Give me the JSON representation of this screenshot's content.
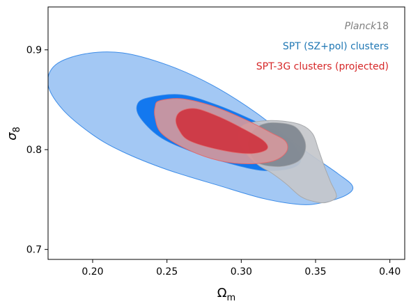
{
  "chart_data": {
    "type": "contour",
    "xlabel": "Ω",
    "xlabel_sub": "m",
    "ylabel": "σ",
    "ylabel_sub": "8",
    "xlim": [
      0.17,
      0.41
    ],
    "ylim": [
      0.69,
      0.943
    ],
    "xticks": [
      0.2,
      0.25,
      0.3,
      0.35,
      0.4
    ],
    "xtick_labels": [
      "0.20",
      "0.25",
      "0.30",
      "0.35",
      "0.40"
    ],
    "yticks": [
      0.7,
      0.8,
      0.9
    ],
    "ytick_labels": [
      "0.7",
      "0.8",
      "0.9"
    ],
    "grid": false,
    "legend_placement": "top-right",
    "legend": [
      {
        "label_italic": "Planck",
        "label": "18",
        "color": "#7f7f7f"
      },
      {
        "label_italic": "",
        "label": "SPT (SZ+pol) clusters",
        "color": "#1f77b4"
      },
      {
        "label_italic": "",
        "label": "SPT-3G clusters (projected)",
        "color": "#d62728"
      }
    ],
    "series": [
      {
        "key": "spt_sz_pol",
        "outer_fill": "#9bc3f3",
        "inner_fill": "#0671ee",
        "edge": "#3c8ce8",
        "contour_68": [
          [
            0.2372,
            0.852
          ],
          [
            0.26,
            0.855
          ],
          [
            0.285,
            0.844
          ],
          [
            0.31,
            0.828
          ],
          [
            0.33,
            0.813
          ],
          [
            0.34,
            0.793
          ],
          [
            0.335,
            0.782
          ],
          [
            0.315,
            0.779
          ],
          [
            0.29,
            0.787
          ],
          [
            0.265,
            0.799
          ],
          [
            0.245,
            0.813
          ],
          [
            0.232,
            0.832
          ],
          [
            0.23,
            0.845
          ]
        ],
        "contour_95": [
          [
            0.22,
            0.897
          ],
          [
            0.25,
            0.885
          ],
          [
            0.28,
            0.865
          ],
          [
            0.31,
            0.837
          ],
          [
            0.34,
            0.802
          ],
          [
            0.365,
            0.776
          ],
          [
            0.375,
            0.763
          ],
          [
            0.37,
            0.754
          ],
          [
            0.355,
            0.747
          ],
          [
            0.34,
            0.745
          ],
          [
            0.315,
            0.751
          ],
          [
            0.285,
            0.764
          ],
          [
            0.25,
            0.78
          ],
          [
            0.22,
            0.798
          ],
          [
            0.2,
            0.815
          ],
          [
            0.18,
            0.84
          ],
          [
            0.17,
            0.865
          ],
          [
            0.175,
            0.885
          ],
          [
            0.195,
            0.896
          ]
        ]
      },
      {
        "key": "planck18",
        "outer_fill": "#c4c7cb",
        "inner_fill": "#7f8790",
        "edge": "#a7a9ac",
        "contour_68": [
          [
            0.31,
            0.822
          ],
          [
            0.32,
            0.827
          ],
          [
            0.335,
            0.824
          ],
          [
            0.342,
            0.812
          ],
          [
            0.343,
            0.799
          ],
          [
            0.338,
            0.788
          ],
          [
            0.326,
            0.783
          ],
          [
            0.312,
            0.786
          ],
          [
            0.306,
            0.796
          ],
          [
            0.305,
            0.81
          ]
        ],
        "contour_95": [
          [
            0.3,
            0.823
          ],
          [
            0.31,
            0.828
          ],
          [
            0.325,
            0.829
          ],
          [
            0.34,
            0.825
          ],
          [
            0.348,
            0.816
          ],
          [
            0.352,
            0.8
          ],
          [
            0.356,
            0.783
          ],
          [
            0.36,
            0.768
          ],
          [
            0.364,
            0.753
          ],
          [
            0.357,
            0.747
          ],
          [
            0.349,
            0.748
          ],
          [
            0.34,
            0.753
          ],
          [
            0.33,
            0.766
          ],
          [
            0.32,
            0.777
          ],
          [
            0.312,
            0.784
          ],
          [
            0.304,
            0.795
          ],
          [
            0.298,
            0.81
          ]
        ]
      },
      {
        "key": "spt3g_projected",
        "outer_fill": "#d4989c",
        "inner_fill": "#ce3440",
        "edge": "#e06a6d",
        "contour_68": [
          [
            0.26,
            0.839
          ],
          [
            0.27,
            0.841
          ],
          [
            0.285,
            0.833
          ],
          [
            0.3,
            0.822
          ],
          [
            0.315,
            0.809
          ],
          [
            0.317,
            0.8
          ],
          [
            0.305,
            0.796
          ],
          [
            0.285,
            0.8
          ],
          [
            0.265,
            0.809
          ],
          [
            0.258,
            0.82
          ],
          [
            0.256,
            0.831
          ]
        ],
        "contour_95": [
          [
            0.245,
            0.849
          ],
          [
            0.26,
            0.851
          ],
          [
            0.28,
            0.844
          ],
          [
            0.3,
            0.832
          ],
          [
            0.32,
            0.817
          ],
          [
            0.33,
            0.808
          ],
          [
            0.33,
            0.797
          ],
          [
            0.32,
            0.788
          ],
          [
            0.3,
            0.786
          ],
          [
            0.28,
            0.791
          ],
          [
            0.26,
            0.803
          ],
          [
            0.246,
            0.817
          ],
          [
            0.242,
            0.832
          ],
          [
            0.242,
            0.843
          ]
        ]
      }
    ]
  }
}
